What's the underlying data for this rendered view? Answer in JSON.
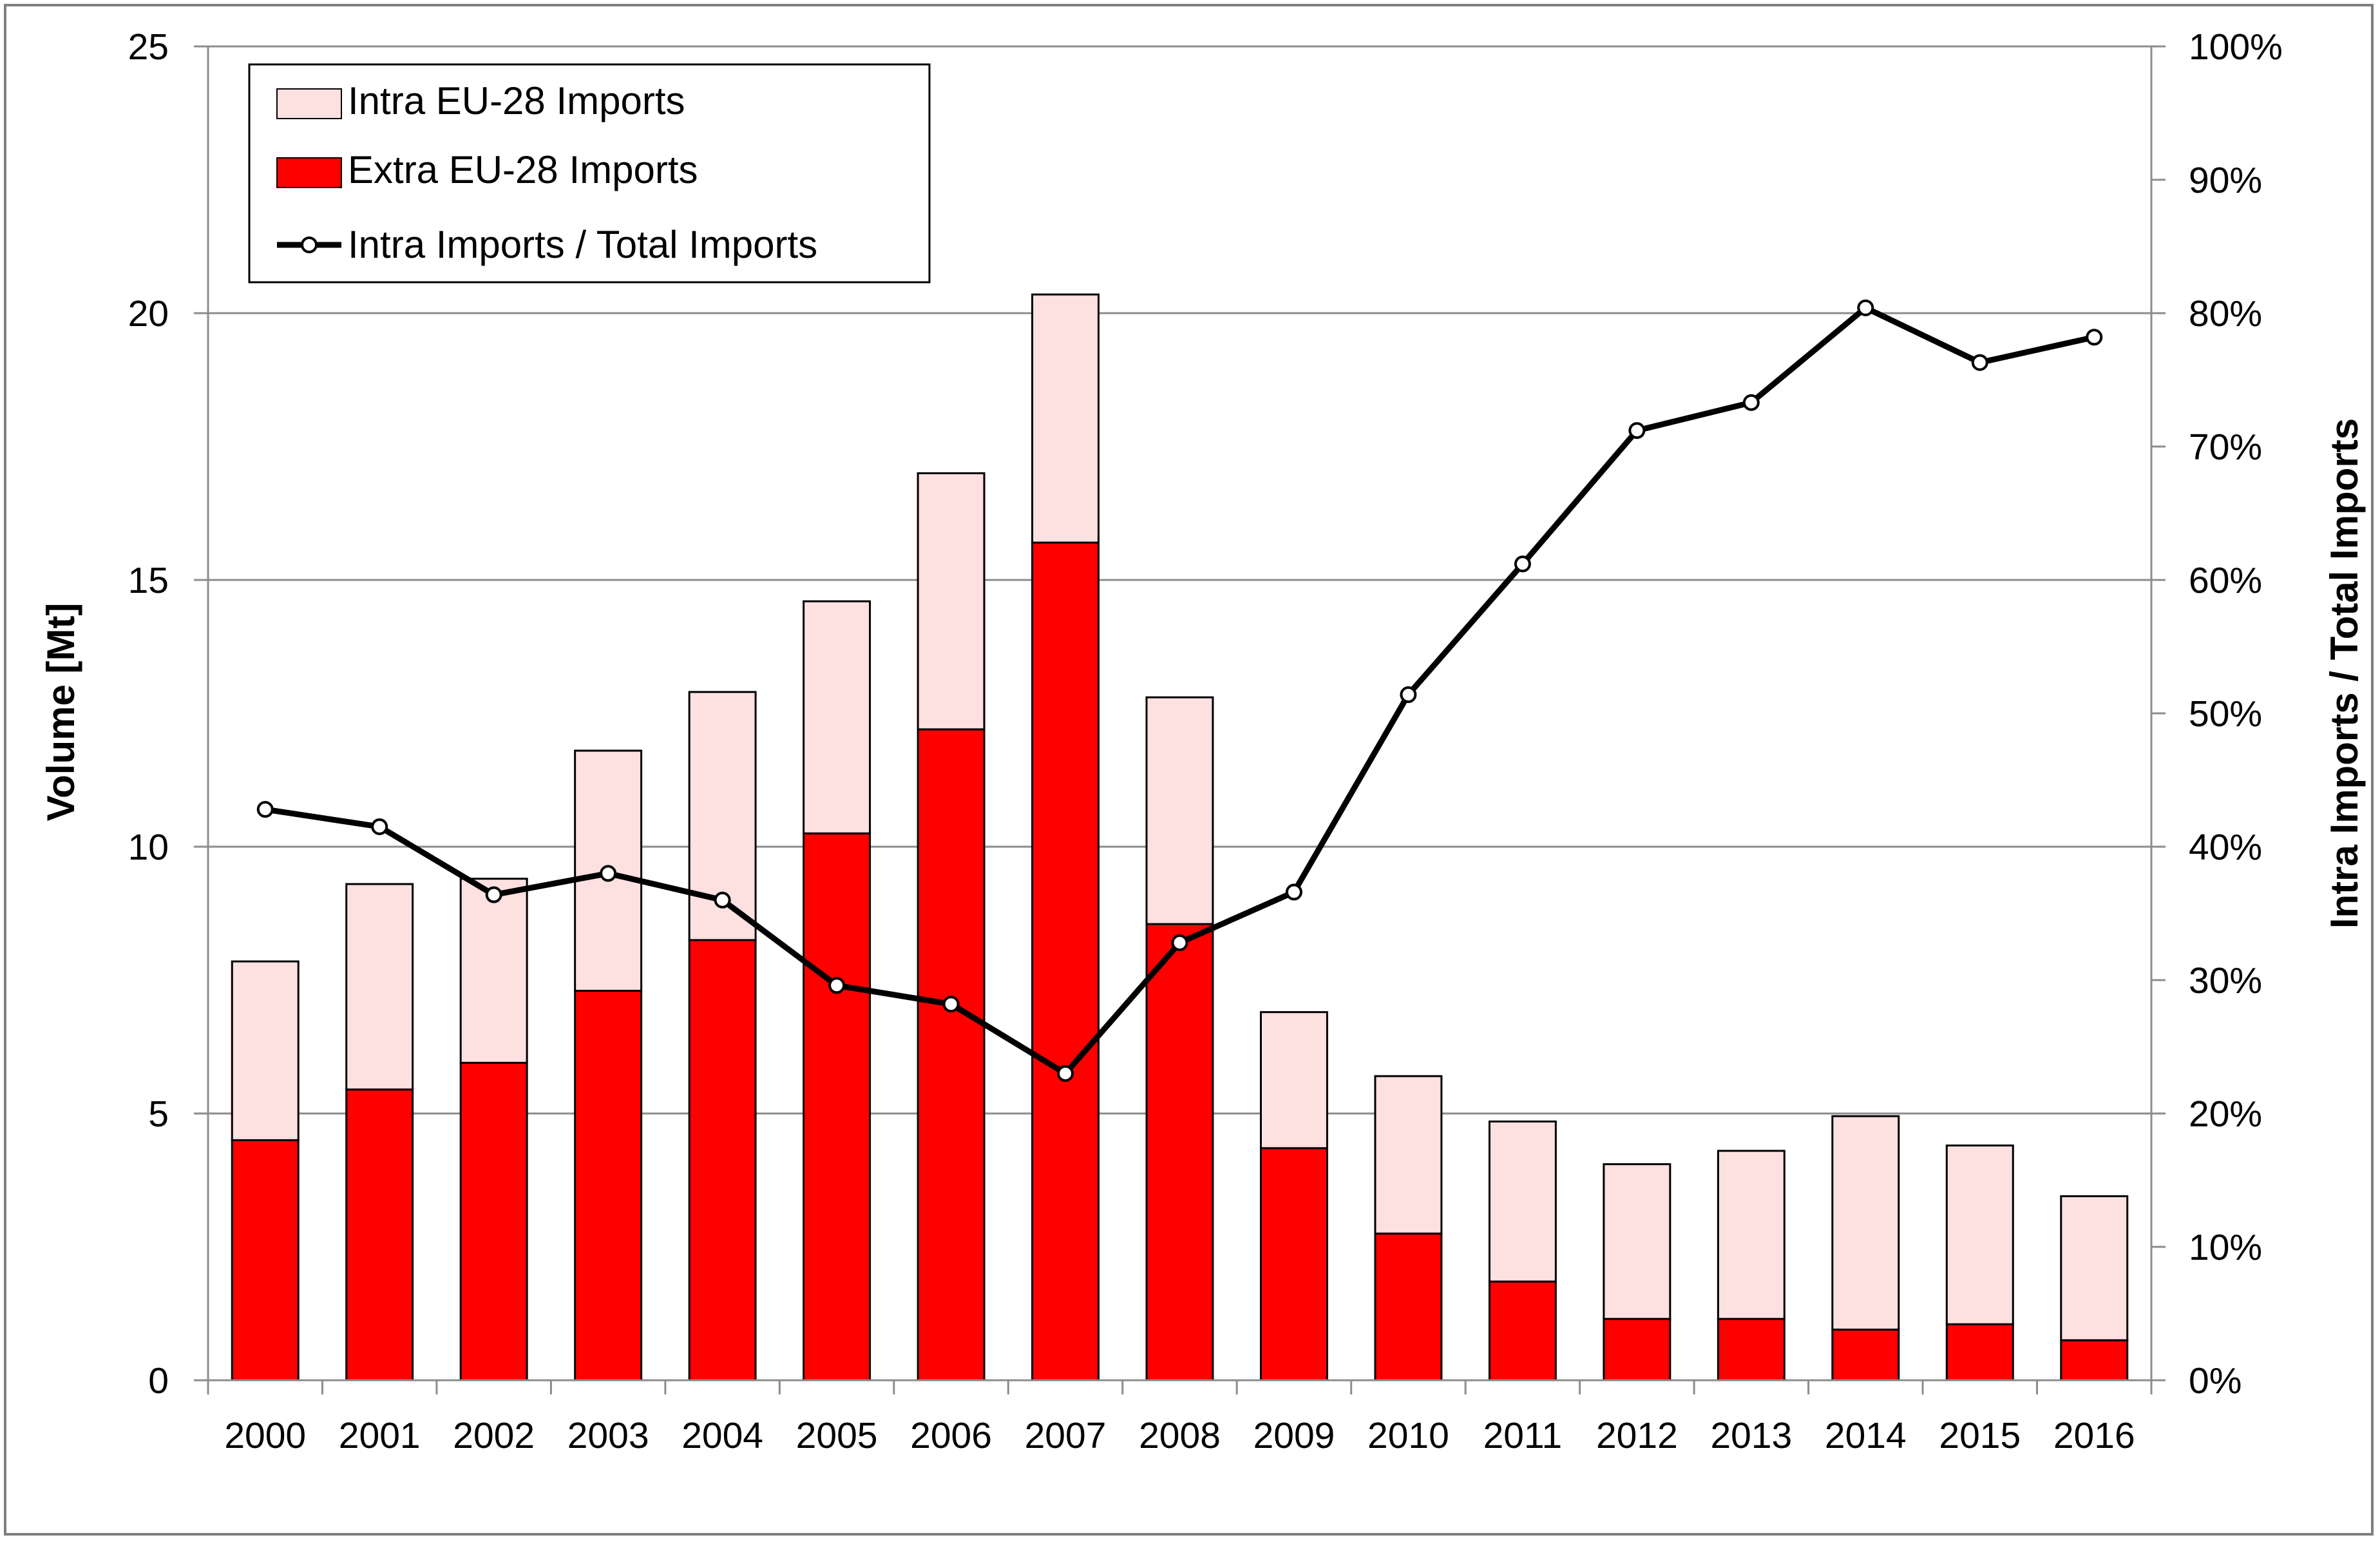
{
  "chart_data": {
    "type": "bar",
    "stacked": true,
    "categories": [
      "2000",
      "2001",
      "2002",
      "2003",
      "2004",
      "2005",
      "2006",
      "2007",
      "2008",
      "2009",
      "2010",
      "2011",
      "2012",
      "2013",
      "2014",
      "2015",
      "2016"
    ],
    "series": [
      {
        "name": "Extra EU-28 Imports",
        "type": "bar",
        "axis": "left",
        "color": "#ff0000",
        "values": [
          4.5,
          5.45,
          5.95,
          7.3,
          8.25,
          10.25,
          12.2,
          15.7,
          8.55,
          4.35,
          2.75,
          1.85,
          1.15,
          1.15,
          0.95,
          1.05,
          0.75
        ]
      },
      {
        "name": "Intra EU-28 Imports",
        "type": "bar",
        "axis": "left",
        "color": "#fde0e0",
        "values": [
          3.35,
          3.85,
          3.45,
          4.5,
          4.65,
          4.35,
          4.8,
          4.65,
          4.25,
          2.55,
          2.95,
          3.0,
          2.9,
          3.15,
          4.0,
          3.35,
          2.7
        ]
      },
      {
        "name": "Intra Imports / Total Imports",
        "type": "line",
        "axis": "right",
        "color": "#000000",
        "unit": "%",
        "values": [
          42.8,
          41.5,
          36.4,
          38.0,
          36.0,
          29.6,
          28.2,
          23.0,
          32.8,
          36.6,
          51.4,
          61.2,
          71.2,
          73.3,
          80.4,
          76.3,
          78.2
        ]
      }
    ],
    "ylabel": "Volume [Mt]",
    "y2label": "Intra Imports / Total Imports",
    "ylim": [
      0,
      25
    ],
    "y2lim": [
      0,
      100
    ],
    "yticks": [
      "0",
      "5",
      "10",
      "15",
      "20",
      "25"
    ],
    "y2ticks": [
      "0%",
      "10%",
      "20%",
      "30%",
      "40%",
      "50%",
      "60%",
      "70%",
      "80%",
      "90%",
      "100%"
    ],
    "grid": true,
    "legend_position": "top-left"
  }
}
